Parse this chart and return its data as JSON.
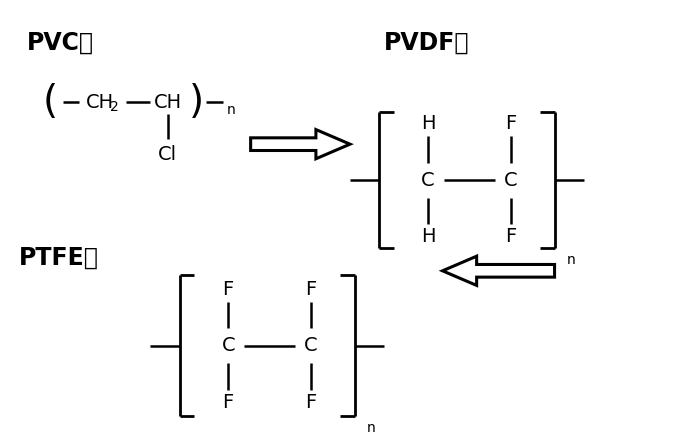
{
  "bg_color": "#ffffff",
  "fig_width": 7.0,
  "fig_height": 4.34,
  "dpi": 100,
  "label_fontsize": 17,
  "formula_fontsize": 14,
  "sub_fontsize": 10,
  "line_color": "#000000",
  "lw": 1.8,
  "pvc_label": "PVC：",
  "pvdf_label": "PVDF：",
  "ptfe_label": "PTFE："
}
